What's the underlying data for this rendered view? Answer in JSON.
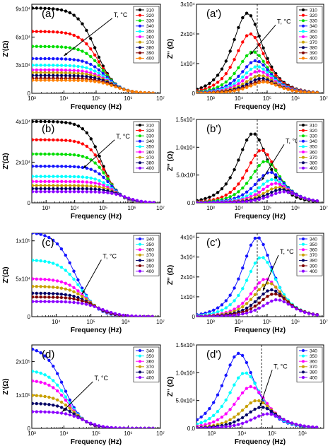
{
  "colors": {
    "310": "#000000",
    "320": "#ff0000",
    "330": "#00dd00",
    "340": "#1515ff",
    "350": "#00ffff",
    "360": "#ff00ff",
    "370": "#c8a000",
    "380": "#000066",
    "390": "#800000",
    "400": "#8b00ff",
    "400o": "#ff8000"
  },
  "chart_data": [
    {
      "id": "a",
      "type": "scatter",
      "label": "(a)",
      "xscale": "log",
      "xlim": [
        3,
        7
      ],
      "ylim": [
        0,
        95000
      ],
      "xlabel": "Frequency (Hz)",
      "ylabel": "Z'(Ω)",
      "xticks": [
        "10³",
        "10⁴",
        "10⁵",
        "10⁶",
        "10⁷"
      ],
      "yticks": [
        {
          "v": 0,
          "t": "0"
        },
        {
          "v": 30000,
          "t": "3x10⁴"
        },
        {
          "v": 60000,
          "t": "6x10⁴"
        },
        {
          "v": 90000,
          "t": "9x10⁴"
        }
      ],
      "annotation": "T, °C",
      "arrow": [
        [
          5.5,
          80000
        ],
        [
          4.0,
          40000
        ]
      ],
      "dashed_x": null,
      "legend": [
        "310",
        "320",
        "330",
        "340",
        "350",
        "360",
        "370",
        "380",
        "390",
        "400"
      ],
      "series": [
        {
          "name": "310",
          "color_key": "310",
          "r": 91000,
          "fc": 5.0
        },
        {
          "name": "320",
          "color_key": "320",
          "r": 66000,
          "fc": 5.1
        },
        {
          "name": "330",
          "color_key": "330",
          "r": 50000,
          "fc": 5.2
        },
        {
          "name": "340",
          "color_key": "340",
          "r": 37000,
          "fc": 5.3
        },
        {
          "name": "350",
          "color_key": "350",
          "r": 30000,
          "fc": 5.35
        },
        {
          "name": "360",
          "color_key": "360",
          "r": 25000,
          "fc": 5.4
        },
        {
          "name": "370",
          "color_key": "370",
          "r": 22000,
          "fc": 5.45
        },
        {
          "name": "380",
          "color_key": "380",
          "r": 19000,
          "fc": 5.5
        },
        {
          "name": "390",
          "color_key": "390",
          "r": 16000,
          "fc": 5.55
        },
        {
          "name": "400",
          "color_key": "400o",
          "r": 14000,
          "fc": 5.6
        }
      ]
    },
    {
      "id": "a2",
      "type": "scatter",
      "label": "(a')",
      "xscale": "log",
      "xlim": [
        2.5,
        7
      ],
      "ylim": [
        0,
        30000
      ],
      "xlabel": "Frequency (Hz)",
      "ylabel": "Z'' (Ω)",
      "xticks": [
        "10³",
        "10⁴",
        "10⁵",
        "10⁶",
        "10⁷"
      ],
      "yticks": [
        {
          "v": 0,
          "t": "0"
        },
        {
          "v": 10000,
          "t": "1x10⁴"
        },
        {
          "v": 20000,
          "t": "2x10⁴"
        },
        {
          "v": 30000,
          "t": "3x10⁴"
        }
      ],
      "annotation": "T, °C",
      "arrow": [
        [
          5.3,
          23000
        ],
        [
          4.4,
          13000
        ]
      ],
      "dashed_x": 4.65,
      "legend": [
        "310",
        "320",
        "330",
        "340",
        "350",
        "360",
        "370",
        "380",
        "390",
        "400"
      ],
      "series": [
        {
          "name": "310",
          "color_key": "310",
          "peak": 27000,
          "fp": 4.3
        },
        {
          "name": "320",
          "color_key": "320",
          "peak": 20000,
          "fp": 4.4
        },
        {
          "name": "330",
          "color_key": "330",
          "peak": 14000,
          "fp": 4.5
        },
        {
          "name": "340",
          "color_key": "340",
          "peak": 11000,
          "fp": 4.6
        },
        {
          "name": "350",
          "color_key": "350",
          "peak": 9000,
          "fp": 4.65
        },
        {
          "name": "360",
          "color_key": "360",
          "peak": 7500,
          "fp": 4.7
        },
        {
          "name": "370",
          "color_key": "370",
          "peak": 6000,
          "fp": 4.75
        },
        {
          "name": "380",
          "color_key": "380",
          "peak": 5000,
          "fp": 4.8
        },
        {
          "name": "390",
          "color_key": "390",
          "peak": 4200,
          "fp": 4.85
        },
        {
          "name": "400",
          "color_key": "400o",
          "peak": 3800,
          "fp": 4.9
        }
      ]
    },
    {
      "id": "b",
      "type": "scatter",
      "label": "(b)",
      "xscale": "log",
      "xlim": [
        2.5,
        7
      ],
      "ylim": [
        0,
        41000
      ],
      "xlabel": "Frequency (Hz)",
      "ylabel": "Z'(Ω)",
      "xticks": [
        "10³",
        "10⁴",
        "10⁵",
        "10⁶",
        "10⁷"
      ],
      "yticks": [
        {
          "v": 0,
          "t": "0"
        },
        {
          "v": 20000,
          "t": "2x10⁴"
        },
        {
          "v": 40000,
          "t": "4x10⁴"
        }
      ],
      "annotation": "T, °C",
      "arrow": [
        [
          5.4,
          31000
        ],
        [
          4.3,
          17000
        ]
      ],
      "dashed_x": null,
      "legend": [
        "310",
        "320",
        "330",
        "340",
        "350",
        "360",
        "370",
        "380",
        "400"
      ],
      "series": [
        {
          "name": "310",
          "color_key": "310",
          "r": 40000,
          "fc": 4.95
        },
        {
          "name": "320",
          "color_key": "320",
          "r": 31000,
          "fc": 5.05
        },
        {
          "name": "330",
          "color_key": "330",
          "r": 24000,
          "fc": 5.15
        },
        {
          "name": "340",
          "color_key": "340",
          "r": 18000,
          "fc": 5.25
        },
        {
          "name": "350",
          "color_key": "350",
          "r": 13000,
          "fc": 5.35
        },
        {
          "name": "360",
          "color_key": "360",
          "r": 10500,
          "fc": 5.45
        },
        {
          "name": "370",
          "color_key": "370",
          "r": 8500,
          "fc": 5.55
        },
        {
          "name": "380",
          "color_key": "380",
          "r": 7000,
          "fc": 5.65
        },
        {
          "name": "400",
          "color_key": "400",
          "r": 5500,
          "fc": 5.8
        }
      ]
    },
    {
      "id": "b2",
      "type": "scatter",
      "label": "(b')",
      "xscale": "log",
      "xlim": [
        2.5,
        7
      ],
      "ylim": [
        0,
        15000
      ],
      "xlabel": "Frequency (Hz)",
      "ylabel": "Z'' (Ω)",
      "xticks": [
        "10³",
        "10⁴",
        "10⁵",
        "10⁶",
        "10⁷"
      ],
      "yticks": [
        {
          "v": 0,
          "t": "0.0"
        },
        {
          "v": 5000,
          "t": "5.0x10³"
        },
        {
          "v": 10000,
          "t": "1.0x10⁴"
        },
        {
          "v": 15000,
          "t": "1.5x10⁴"
        }
      ],
      "annotation": "T, °C",
      "arrow": [
        [
          5.6,
          10500
        ],
        [
          4.8,
          4000
        ]
      ],
      "dashed_x": 4.65,
      "legend": [
        "310",
        "320",
        "330",
        "340",
        "350",
        "360",
        "370",
        "380",
        "400"
      ],
      "series": [
        {
          "name": "310",
          "color_key": "310",
          "peak": 12500,
          "fp": 4.5
        },
        {
          "name": "320",
          "color_key": "320",
          "peak": 9500,
          "fp": 4.8
        },
        {
          "name": "330",
          "color_key": "330",
          "peak": 7500,
          "fp": 4.95
        },
        {
          "name": "340",
          "color_key": "340",
          "peak": 5500,
          "fp": 5.1
        },
        {
          "name": "350",
          "color_key": "350",
          "peak": 4200,
          "fp": 5.2
        },
        {
          "name": "360",
          "color_key": "360",
          "peak": 3500,
          "fp": 5.3
        },
        {
          "name": "370",
          "color_key": "370",
          "peak": 2800,
          "fp": 5.4
        },
        {
          "name": "380",
          "color_key": "380",
          "peak": 2400,
          "fp": 5.5
        },
        {
          "name": "400",
          "color_key": "400",
          "peak": 2000,
          "fp": 5.6
        }
      ]
    },
    {
      "id": "c",
      "type": "scatter",
      "label": "(c)",
      "xscale": "log",
      "xlim": [
        3.3,
        7
      ],
      "ylim": [
        0,
        110000
      ],
      "xlabel": "Frequency (Hz)",
      "ylabel": "Z'(Ω)",
      "xticks": [
        "10⁴",
        "10⁵",
        "10⁶",
        "10⁷"
      ],
      "xtick_start": 4,
      "yticks": [
        {
          "v": 0,
          "t": "0"
        },
        {
          "v": 50000,
          "t": "5x10⁴"
        },
        {
          "v": 100000,
          "t": "1x10⁵"
        }
      ],
      "annotation": "T, °C",
      "arrow": [
        [
          5.3,
          75000
        ],
        [
          4.75,
          30000
        ]
      ],
      "dashed_x": null,
      "legend": [
        "340",
        "350",
        "360",
        "370",
        "380",
        "390",
        "400"
      ],
      "series": [
        {
          "name": "340",
          "color_key": "340",
          "r": 112000,
          "fc": 4.55
        },
        {
          "name": "350",
          "color_key": "350",
          "r": 75000,
          "fc": 4.7
        },
        {
          "name": "360",
          "color_key": "360",
          "r": 50000,
          "fc": 4.85
        },
        {
          "name": "370",
          "color_key": "370",
          "r": 40000,
          "fc": 4.95
        },
        {
          "name": "380",
          "color_key": "380",
          "r": 31000,
          "fc": 5.05
        },
        {
          "name": "390",
          "color_key": "390",
          "r": 26000,
          "fc": 5.15
        },
        {
          "name": "400",
          "color_key": "400",
          "r": 20000,
          "fc": 5.3
        }
      ]
    },
    {
      "id": "c2",
      "type": "scatter",
      "label": "(c')",
      "xscale": "log",
      "xlim": [
        2.5,
        7
      ],
      "ylim": [
        0,
        42000
      ],
      "xlabel": "Frequency (Hz)",
      "ylabel": "Z'' (Ω)",
      "xticks": [
        "10³",
        "10⁴",
        "10⁵",
        "10⁶",
        "10⁷"
      ],
      "yticks": [
        {
          "v": 0,
          "t": "0"
        },
        {
          "v": 10000,
          "t": "1x10⁴"
        },
        {
          "v": 20000,
          "t": "2x10⁴"
        },
        {
          "v": 30000,
          "t": "3x10⁴"
        },
        {
          "v": 40000,
          "t": "4x10⁴"
        }
      ],
      "annotation": "T, °C",
      "arrow": [
        [
          5.4,
          31000
        ],
        [
          4.85,
          13000
        ]
      ],
      "dashed_x": 4.65,
      "legend": [
        "340",
        "350",
        "360",
        "370",
        "380",
        "390",
        "400"
      ],
      "series": [
        {
          "name": "340",
          "color_key": "340",
          "peak": 40000,
          "fp": 4.65
        },
        {
          "name": "350",
          "color_key": "350",
          "peak": 30000,
          "fp": 4.8
        },
        {
          "name": "360",
          "color_key": "360",
          "peak": 19000,
          "fp": 4.95
        },
        {
          "name": "370",
          "color_key": "370",
          "peak": 17000,
          "fp": 5.05
        },
        {
          "name": "380",
          "color_key": "380",
          "peak": 13500,
          "fp": 5.15
        },
        {
          "name": "390",
          "color_key": "390",
          "peak": 11500,
          "fp": 5.25
        },
        {
          "name": "400",
          "color_key": "400",
          "peak": 8500,
          "fp": 5.35
        }
      ]
    },
    {
      "id": "d",
      "type": "scatter",
      "label": "(d)",
      "xscale": "log",
      "xlim": [
        3,
        7
      ],
      "ylim": [
        0,
        250000
      ],
      "xlabel": "Frequency (Hz)",
      "ylabel": "Z'(Ω)",
      "xticks": [
        "10³",
        "10⁴",
        "10⁵",
        "10⁶",
        "10⁷"
      ],
      "yticks": [
        {
          "v": 0,
          "t": "0"
        },
        {
          "v": 100000,
          "t": "1x10⁵"
        },
        {
          "v": 200000,
          "t": "2x10⁵"
        }
      ],
      "annotation": "T, °C",
      "arrow": [
        [
          4.9,
          140000
        ],
        [
          3.95,
          50000
        ]
      ],
      "dashed_x": null,
      "legend": [
        "340",
        "350",
        "360",
        "370",
        "380",
        "400"
      ],
      "series": [
        {
          "name": "340",
          "color_key": "340",
          "r": 245000,
          "fc": 4.0
        },
        {
          "name": "350",
          "color_key": "350",
          "r": 175000,
          "fc": 4.1
        },
        {
          "name": "360",
          "color_key": "360",
          "r": 145000,
          "fc": 4.15
        },
        {
          "name": "370",
          "color_key": "370",
          "r": 100000,
          "fc": 4.3
        },
        {
          "name": "380",
          "color_key": "380",
          "r": 75000,
          "fc": 4.4
        },
        {
          "name": "400",
          "color_key": "400",
          "r": 50000,
          "fc": 4.6
        }
      ]
    },
    {
      "id": "d2",
      "type": "scatter",
      "label": "(d')",
      "xscale": "log",
      "xlim": [
        2.5,
        6.7
      ],
      "ylim": [
        0,
        150000
      ],
      "xlabel": "Frequency (Hz)",
      "ylabel": "Z'' (Ω)",
      "xticks": [
        "10³",
        "10⁴",
        "10⁵",
        "10⁶"
      ],
      "yticks": [
        {
          "v": 0,
          "t": "0.0"
        },
        {
          "v": 50000,
          "t": "5.0x10⁴"
        },
        {
          "v": 100000,
          "t": "1.0x10⁵"
        },
        {
          "v": 150000,
          "t": "1.5x10⁵"
        }
      ],
      "annotation": "T, °C",
      "arrow": [
        [
          5.0,
          105000
        ],
        [
          4.6,
          40000
        ]
      ],
      "dashed_x": 4.65,
      "legend": [
        "340",
        "350",
        "360",
        "370",
        "380",
        "400"
      ],
      "series": [
        {
          "name": "340",
          "color_key": "340",
          "peak": 135000,
          "fp": 3.9
        },
        {
          "name": "350",
          "color_key": "350",
          "peak": 100000,
          "fp": 4.1
        },
        {
          "name": "360",
          "color_key": "360",
          "peak": 75000,
          "fp": 4.3
        },
        {
          "name": "370",
          "color_key": "370",
          "peak": 50000,
          "fp": 4.5
        },
        {
          "name": "380",
          "color_key": "380",
          "peak": 38000,
          "fp": 4.65
        },
        {
          "name": "400",
          "color_key": "400",
          "peak": 26000,
          "fp": 4.85
        }
      ]
    }
  ]
}
